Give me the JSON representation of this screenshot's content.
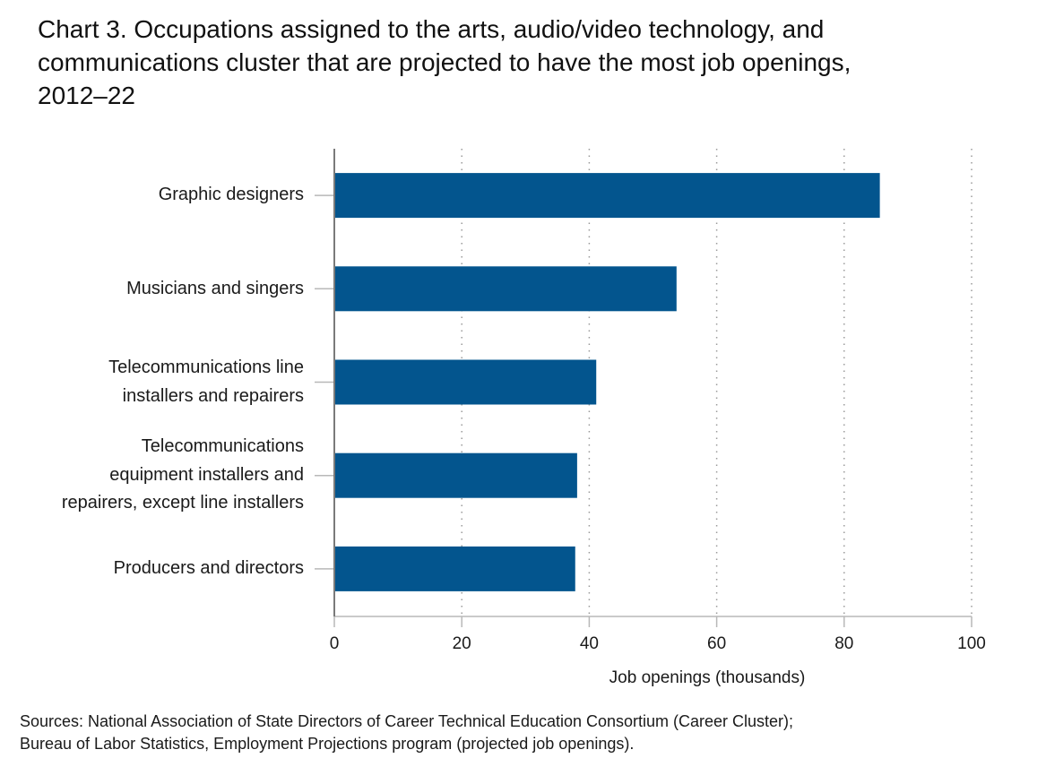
{
  "title_lines": [
    "Chart 3. Occupations assigned to the arts, audio/video technology, and",
    "communications cluster that are projected to have the most job openings,",
    "2012–22"
  ],
  "source_lines": [
    "Sources: National Association of State Directors of Career Technical Education Consortium (Career Cluster);",
    "Bureau of Labor Statistics, Employment Projections program (projected job openings)."
  ],
  "chart_data": {
    "type": "bar",
    "orientation": "horizontal",
    "title": "Chart 3. Occupations assigned to the arts, audio/video technology, and communications cluster that are projected to have the most job openings, 2012–22",
    "xlabel": "Job openings (thousands)",
    "ylabel": "",
    "xlim": [
      0,
      100
    ],
    "xticks": [
      0,
      20,
      40,
      60,
      80,
      100
    ],
    "grid": "vertical dotted",
    "bar_color": "#03558e",
    "categories": [
      "Graphic designers",
      "Musicians and singers",
      "Telecommunications line installers and repairers",
      "Telecommunications equipment installers and repairers, except line installers",
      "Producers and directors"
    ],
    "category_label_lines": [
      [
        "Graphic designers"
      ],
      [
        "Musicians and singers"
      ],
      [
        "Telecommunications line",
        "installers and repairers"
      ],
      [
        "Telecommunications",
        "equipment installers and",
        "repairers, except line installers"
      ],
      [
        "Producers and directors"
      ]
    ],
    "values": [
      85.6,
      53.7,
      41.1,
      38.1,
      37.8
    ]
  }
}
